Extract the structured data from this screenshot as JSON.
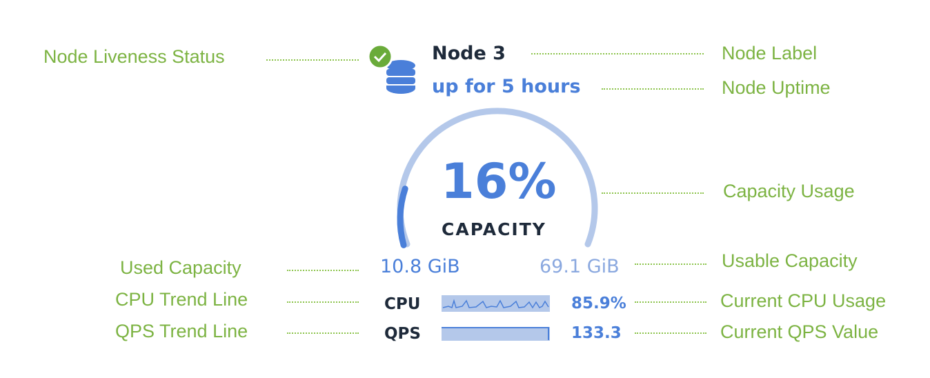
{
  "node": {
    "label": "Node 3",
    "uptime": "up for 5 hours",
    "liveness": "live",
    "icon": "database-icon",
    "status_icon": "check-circle-icon"
  },
  "capacity": {
    "percent_text": "16%",
    "percent": 16,
    "label": "CAPACITY",
    "used": "10.8 GiB",
    "usable": "69.1 GiB"
  },
  "cpu": {
    "label": "CPU",
    "value": "85.9%"
  },
  "qps": {
    "label": "QPS",
    "value": "133.3"
  },
  "annotations": {
    "liveness": "Node Liveness Status",
    "node_label": "Node Label",
    "uptime": "Node Uptime",
    "capacity_usage": "Capacity Usage",
    "used_capacity": "Used Capacity",
    "usable_capacity": "Usable Capacity",
    "cpu_trend": "CPU Trend Line",
    "cpu_current": "Current CPU Usage",
    "qps_trend": "QPS Trend Line",
    "qps_current": "Current QPS Value"
  },
  "colors": {
    "accent": "#4a7fd9",
    "light": "#b4c8ea",
    "annotation": "#7cb342",
    "live": "#6aab3a",
    "dark": "#1e2a3a"
  }
}
